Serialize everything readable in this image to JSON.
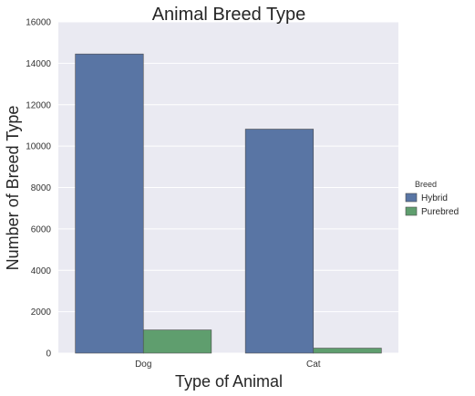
{
  "chart_data": {
    "type": "bar",
    "title": "Animal Breed Type",
    "xlabel": "Type of Animal",
    "ylabel": "Number of Breed Type",
    "categories": [
      "Dog",
      "Cat"
    ],
    "series": [
      {
        "name": "Hybrid",
        "values": [
          14450,
          10820
        ]
      },
      {
        "name": "Purebred",
        "values": [
          1120,
          240
        ]
      }
    ],
    "ylim": [
      0,
      16000
    ],
    "yticks": [
      0,
      2000,
      4000,
      6000,
      8000,
      10000,
      12000,
      14000,
      16000
    ],
    "ytick_labels": [
      "0",
      "2000",
      "4000",
      "6000",
      "8000",
      "10000",
      "12000",
      "14000",
      "16000"
    ],
    "grid": true,
    "legend": {
      "title": "Breed",
      "placement": "right"
    },
    "colors": {
      "background": "#eaeaf2",
      "grid": "#ffffff",
      "Hybrid": "#5975a4",
      "Purebred": "#5f9e6e"
    }
  }
}
